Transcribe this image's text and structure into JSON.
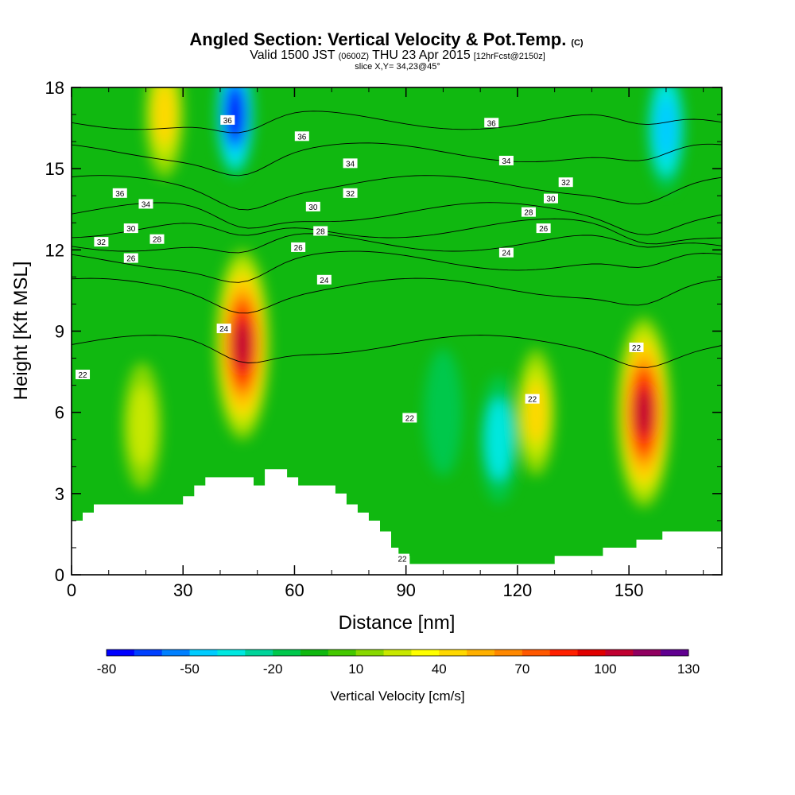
{
  "figure": {
    "title": "Angled Section: Vertical Velocity & Pot.Temp.",
    "title_suffix": "(C)",
    "subtitle_main": "Valid 1500 JST",
    "subtitle_z": "(0600Z)",
    "subtitle_date": "THU 23 Apr 2015",
    "subtitle_fcst": "[12hrFcst@2150z]",
    "slice": "slice X,Y= 34,23@45°"
  },
  "chart_data": {
    "type": "heatmap",
    "xlabel": "Distance [nm]",
    "ylabel": "Height [Kft MSL]",
    "xlim": [
      0,
      175
    ],
    "ylim": [
      0,
      18
    ],
    "xticks": [
      0,
      30,
      60,
      90,
      120,
      150
    ],
    "yticks": [
      0,
      3,
      6,
      9,
      12,
      15,
      18
    ],
    "colorbar": {
      "label": "Vertical Velocity [cm/s]",
      "tick_labels": [
        "-80",
        "-50",
        "-20",
        "10",
        "40",
        "70",
        "100",
        "130"
      ],
      "tick_values": [
        -80,
        -50,
        -20,
        10,
        40,
        70,
        100,
        130
      ],
      "colors": [
        "#0000ff",
        "#0040ff",
        "#0080ff",
        "#00ccff",
        "#00e8e0",
        "#00d49a",
        "#00c84c",
        "#10b810",
        "#44c800",
        "#88d800",
        "#c8e800",
        "#ffff00",
        "#ffd800",
        "#ffb000",
        "#ff8800",
        "#ff5800",
        "#ff2000",
        "#e00000",
        "#c00030",
        "#900060",
        "#600090"
      ]
    },
    "terrain_top_kft": [
      [
        0,
        2.0
      ],
      [
        3,
        2.3
      ],
      [
        6,
        2.6
      ],
      [
        30,
        2.9
      ],
      [
        33,
        3.3
      ],
      [
        36,
        3.6
      ],
      [
        49,
        3.3
      ],
      [
        52,
        3.9
      ],
      [
        58,
        3.6
      ],
      [
        61,
        3.3
      ],
      [
        71,
        3.0
      ],
      [
        74,
        2.6
      ],
      [
        77,
        2.3
      ],
      [
        80,
        2.0
      ],
      [
        83,
        1.6
      ],
      [
        86,
        1.0
      ],
      [
        88,
        0.7
      ],
      [
        91,
        0.4
      ],
      [
        129,
        0.4
      ],
      [
        130,
        0.7
      ],
      [
        143,
        1.0
      ],
      [
        152,
        1.3
      ],
      [
        159,
        1.6
      ],
      [
        175,
        1.6
      ]
    ],
    "vertical_velocity_features": [
      {
        "x": 46,
        "y": 8.5,
        "peak": 110,
        "kind": "updraft"
      },
      {
        "x": 154,
        "y": 6.0,
        "peak": 100,
        "kind": "updraft"
      },
      {
        "x": 125,
        "y": 6.0,
        "peak": 40,
        "kind": "updraft"
      },
      {
        "x": 19,
        "y": 5.5,
        "peak": 30,
        "kind": "updraft"
      },
      {
        "x": 25,
        "y": 17.0,
        "peak": 40,
        "kind": "updraft"
      },
      {
        "x": 44,
        "y": 17.0,
        "peak": -80,
        "kind": "downdraft"
      },
      {
        "x": 160,
        "y": 16.5,
        "peak": -60,
        "kind": "downdraft"
      },
      {
        "x": 115,
        "y": 5.0,
        "peak": -40,
        "kind": "downdraft"
      },
      {
        "x": 100,
        "y": 6.0,
        "peak": -30,
        "kind": "downdraft"
      }
    ],
    "pot_temp_contour_labels": [
      {
        "v": "36",
        "x": 42,
        "y": 16.8
      },
      {
        "v": "36",
        "x": 62,
        "y": 16.2
      },
      {
        "v": "36",
        "x": 113,
        "y": 16.7
      },
      {
        "v": "34",
        "x": 75,
        "y": 15.2
      },
      {
        "v": "34",
        "x": 117,
        "y": 15.3
      },
      {
        "v": "32",
        "x": 75,
        "y": 14.1
      },
      {
        "v": "32",
        "x": 133,
        "y": 14.5
      },
      {
        "v": "30",
        "x": 65,
        "y": 13.6
      },
      {
        "v": "30",
        "x": 129,
        "y": 13.9
      },
      {
        "v": "28",
        "x": 123,
        "y": 13.4
      },
      {
        "v": "26",
        "x": 127,
        "y": 12.8
      },
      {
        "v": "24",
        "x": 117,
        "y": 11.9
      },
      {
        "v": "28",
        "x": 67,
        "y": 12.7
      },
      {
        "v": "26",
        "x": 61,
        "y": 12.1
      },
      {
        "v": "24",
        "x": 68,
        "y": 10.9
      },
      {
        "v": "36",
        "x": 13,
        "y": 14.1
      },
      {
        "v": "34",
        "x": 20,
        "y": 13.7
      },
      {
        "v": "30",
        "x": 16,
        "y": 12.8
      },
      {
        "v": "28",
        "x": 23,
        "y": 12.4
      },
      {
        "v": "32",
        "x": 8,
        "y": 12.3
      },
      {
        "v": "26",
        "x": 16,
        "y": 11.7
      },
      {
        "v": "24",
        "x": 41,
        "y": 9.1
      },
      {
        "v": "22",
        "x": 3,
        "y": 7.4
      },
      {
        "v": "22",
        "x": 91,
        "y": 5.8
      },
      {
        "v": "22",
        "x": 124,
        "y": 6.5
      },
      {
        "v": "22",
        "x": 152,
        "y": 8.4
      },
      {
        "v": "22",
        "x": 89,
        "y": 0.6
      }
    ]
  }
}
